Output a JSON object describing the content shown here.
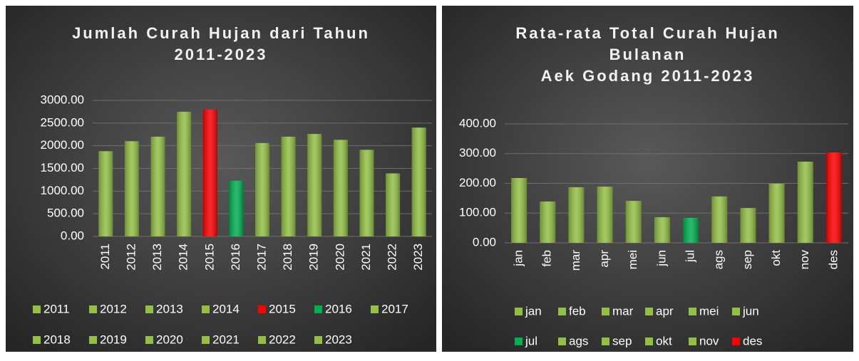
{
  "chart_data": [
    {
      "type": "bar",
      "title": [
        "Jumlah Curah Hujan dari Tahun",
        "2011-2023"
      ],
      "categories": [
        "2011",
        "2012",
        "2013",
        "2014",
        "2015",
        "2016",
        "2017",
        "2018",
        "2019",
        "2020",
        "2021",
        "2022",
        "2023"
      ],
      "values": [
        1880,
        2100,
        2200,
        2750,
        2800,
        1230,
        2060,
        2200,
        2260,
        2130,
        1910,
        1390,
        2400
      ],
      "colors": [
        "#92c045",
        "#92c045",
        "#92c045",
        "#92c045",
        "#ff0000",
        "#00b050",
        "#92c045",
        "#92c045",
        "#92c045",
        "#92c045",
        "#92c045",
        "#92c045",
        "#92c045"
      ],
      "ylim": [
        0,
        3000
      ],
      "yticks": [
        {
          "value": 0,
          "label": "0.00"
        },
        {
          "value": 500,
          "label": "500.00"
        },
        {
          "value": 1000,
          "label": "1000.00"
        },
        {
          "value": 1500,
          "label": "1500.00"
        },
        {
          "value": 2000,
          "label": "2000.00"
        },
        {
          "value": 2500,
          "label": "2500.00"
        },
        {
          "value": 3000,
          "label": "3000.00"
        }
      ],
      "grid": true
    },
    {
      "type": "bar",
      "title": [
        "Rata-rata Total Curah Hujan",
        "Bulanan",
        "Aek Godang 2011-2023"
      ],
      "categories": [
        "jan",
        "feb",
        "mar",
        "apr",
        "mei",
        "jun",
        "jul",
        "ags",
        "sep",
        "okt",
        "nov",
        "des"
      ],
      "values": [
        218,
        139,
        187,
        189,
        141,
        86,
        84,
        156,
        117,
        199,
        273,
        304
      ],
      "colors": [
        "#92c045",
        "#92c045",
        "#92c045",
        "#92c045",
        "#92c045",
        "#92c045",
        "#00b050",
        "#92c045",
        "#92c045",
        "#92c045",
        "#92c045",
        "#ff0000"
      ],
      "ylim": [
        0,
        400
      ],
      "yticks": [
        {
          "value": 0,
          "label": "0.00"
        },
        {
          "value": 100,
          "label": "100.00"
        },
        {
          "value": 200,
          "label": "200.00"
        },
        {
          "value": 300,
          "label": "300.00"
        },
        {
          "value": 400,
          "label": "400.00"
        }
      ],
      "grid": true
    }
  ]
}
